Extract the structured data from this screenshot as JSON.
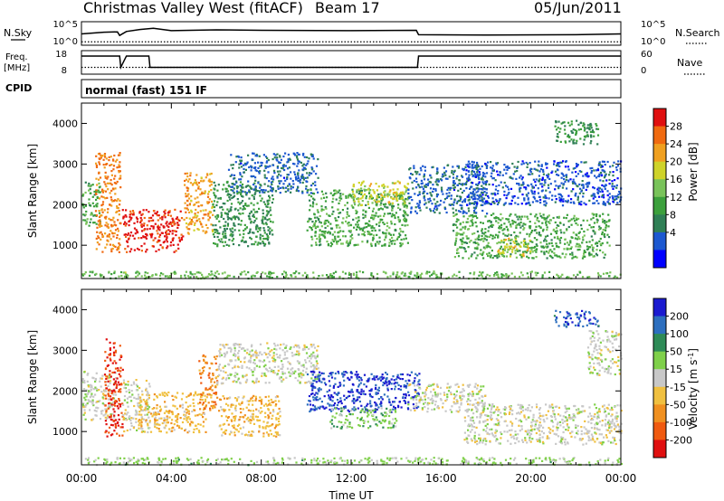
{
  "header": {
    "station": "Christmas Valley West (fitACF)",
    "beam": "Beam 17",
    "date": "05/Jun/2011"
  },
  "sky_panel": {
    "left_label": "N.Sky",
    "left_tick_top": "10^5",
    "left_tick_bottom": "10^0",
    "right_label": "N.Search",
    "right_tick_top": "10^5",
    "right_tick_bottom": "10^0"
  },
  "freq_panel": {
    "left_label_line1": "Freq.",
    "left_label_line2": "[MHz]",
    "left_tick_top": "18",
    "left_tick_bottom": "8",
    "right_label": "Nave",
    "right_tick_top": "60",
    "right_tick_bottom": "0"
  },
  "cpid": {
    "label": "CPID",
    "value": "normal (fast) 151 IF"
  },
  "axes": {
    "ylabel": "Slant Range [km]",
    "xlabel": "Time UT",
    "y_ticks": [
      "1000",
      "2000",
      "3000",
      "4000"
    ],
    "x_ticks": [
      "00:00",
      "04:00",
      "08:00",
      "12:00",
      "16:00",
      "20:00",
      "00:00"
    ]
  },
  "power_scale": {
    "label": "Power [dB]",
    "ticks": [
      "4",
      "8",
      "12",
      "16",
      "20",
      "24",
      "28"
    ],
    "colors": [
      "#0000ff",
      "#1c58d0",
      "#2f7f55",
      "#3ca03c",
      "#79c35a",
      "#cfd32a",
      "#f0a020",
      "#f06a10",
      "#e01010"
    ]
  },
  "velocity_scale": {
    "label": "Velocity [m s",
    "label_sup": "-1",
    "label_end": "]",
    "ticks": [
      "200",
      "100",
      "50",
      "15",
      "-15",
      "-50",
      "-100",
      "-200"
    ],
    "colors": [
      "#1b1bd0",
      "#2d6fbf",
      "#2e8b57",
      "#7fd04a",
      "#c8c8c8",
      "#f0c040",
      "#f09020",
      "#f05a10",
      "#e01010"
    ]
  },
  "chart_data": [
    {
      "type": "line",
      "panel": "N.Sky / N.Search",
      "x_unit": "hours UT",
      "xlim": [
        0,
        24
      ],
      "series": [
        {
          "name": "N.Sky",
          "style": "solid",
          "x": [
            0,
            1,
            1.6,
            1.7,
            2,
            2.6,
            3.2,
            4,
            6,
            8,
            12,
            14.9,
            15,
            18,
            22,
            24
          ],
          "y": [
            2.4,
            2.8,
            2.9,
            2.0,
            3.0,
            3.5,
            3.8,
            3.2,
            3.4,
            3.3,
            3.2,
            3.3,
            2.2,
            2.1,
            2.2,
            2.4
          ]
        },
        {
          "name": "N.Search",
          "style": "dotted",
          "x": [
            0,
            24
          ],
          "y": [
            0.4,
            0.4
          ]
        }
      ]
    },
    {
      "type": "line",
      "panel": "Freq. / Nave",
      "x_unit": "hours UT",
      "xlim": [
        0,
        24
      ],
      "series": [
        {
          "name": "Freq.",
          "style": "solid",
          "x": [
            0,
            1.7,
            1.75,
            2.0,
            2.1,
            3.0,
            3.05,
            14.95,
            15.0,
            24
          ],
          "y": [
            16.2,
            16.2,
            10.5,
            16.2,
            16.2,
            16.2,
            10.5,
            10.5,
            16.2,
            16.2
          ]
        },
        {
          "name": "Nave",
          "style": "dotted",
          "x": [
            0,
            24
          ],
          "y": [
            15,
            15
          ]
        }
      ]
    },
    {
      "type": "heatmap",
      "panel": "Power",
      "x_range_hours": [
        0,
        24
      ],
      "y_range_km": [
        180,
        4500
      ],
      "colorbar_label": "Power [dB]",
      "colorbar_range": [
        0,
        30
      ],
      "regions": [
        {
          "t0": 0.0,
          "t1": 0.8,
          "r0": 1500,
          "r1": 2600,
          "value": 12
        },
        {
          "t0": 0.6,
          "t1": 1.7,
          "r0": 850,
          "r1": 3300,
          "value": 24
        },
        {
          "t0": 1.8,
          "t1": 4.5,
          "r0": 850,
          "r1": 1900,
          "value": 28
        },
        {
          "t0": 4.5,
          "t1": 5.8,
          "r0": 1300,
          "r1": 2800,
          "value": 22
        },
        {
          "t0": 5.8,
          "t1": 8.5,
          "r0": 1000,
          "r1": 2600,
          "value": 10
        },
        {
          "t0": 6.5,
          "t1": 10.5,
          "r0": 2300,
          "r1": 3300,
          "value": 6
        },
        {
          "t0": 10.0,
          "t1": 14.5,
          "r0": 1000,
          "r1": 2400,
          "value": 12
        },
        {
          "t0": 12.0,
          "t1": 14.5,
          "r0": 2000,
          "r1": 2600,
          "value": 18
        },
        {
          "t0": 14.5,
          "t1": 18.0,
          "r0": 1800,
          "r1": 3000,
          "value": 6
        },
        {
          "t0": 16.5,
          "t1": 23.5,
          "r0": 700,
          "r1": 1800,
          "value": 12
        },
        {
          "t0": 18.5,
          "t1": 20.0,
          "r0": 750,
          "r1": 1200,
          "value": 18
        },
        {
          "t0": 17.0,
          "t1": 24.0,
          "r0": 2000,
          "r1": 3100,
          "value": 5
        },
        {
          "t0": 21.0,
          "t1": 23.0,
          "r0": 3500,
          "r1": 4100,
          "value": 10
        },
        {
          "t0": 0.0,
          "t1": 24.0,
          "r0": 200,
          "r1": 380,
          "value": 14
        }
      ]
    },
    {
      "type": "heatmap",
      "panel": "Velocity",
      "x_range_hours": [
        0,
        24
      ],
      "y_range_km": [
        180,
        4500
      ],
      "colorbar_label": "Velocity [m s-1]",
      "colorbar_range": [
        -250,
        250
      ],
      "regions": [
        {
          "t0": 0.0,
          "t1": 1.5,
          "r0": 1300,
          "r1": 2500,
          "value": 0
        },
        {
          "t0": 1.0,
          "t1": 1.8,
          "r0": 900,
          "r1": 3300,
          "value": -200
        },
        {
          "t0": 1.8,
          "t1": 3.0,
          "r0": 1000,
          "r1": 2300,
          "value": 0
        },
        {
          "t0": 2.5,
          "t1": 5.5,
          "r0": 1000,
          "r1": 2000,
          "value": -60
        },
        {
          "t0": 5.2,
          "t1": 6.0,
          "r0": 1500,
          "r1": 2900,
          "value": -120
        },
        {
          "t0": 6.0,
          "t1": 8.8,
          "r0": 900,
          "r1": 1900,
          "value": -60
        },
        {
          "t0": 6.0,
          "t1": 10.5,
          "r0": 2200,
          "r1": 3200,
          "value": 0
        },
        {
          "t0": 10.0,
          "t1": 15.0,
          "r0": 1500,
          "r1": 2500,
          "value": 200
        },
        {
          "t0": 11.0,
          "t1": 14.0,
          "r0": 1100,
          "r1": 1600,
          "value": 60
        },
        {
          "t0": 14.5,
          "t1": 18.0,
          "r0": 1500,
          "r1": 2200,
          "value": 0
        },
        {
          "t0": 17.0,
          "t1": 24.0,
          "r0": 700,
          "r1": 1700,
          "value": 0
        },
        {
          "t0": 21.0,
          "t1": 23.0,
          "r0": 3600,
          "r1": 4000,
          "value": 180
        },
        {
          "t0": 22.5,
          "t1": 24.0,
          "r0": 2400,
          "r1": 3500,
          "value": 0
        },
        {
          "t0": 0.0,
          "t1": 24.0,
          "r0": 200,
          "r1": 380,
          "value": 40
        }
      ]
    }
  ]
}
